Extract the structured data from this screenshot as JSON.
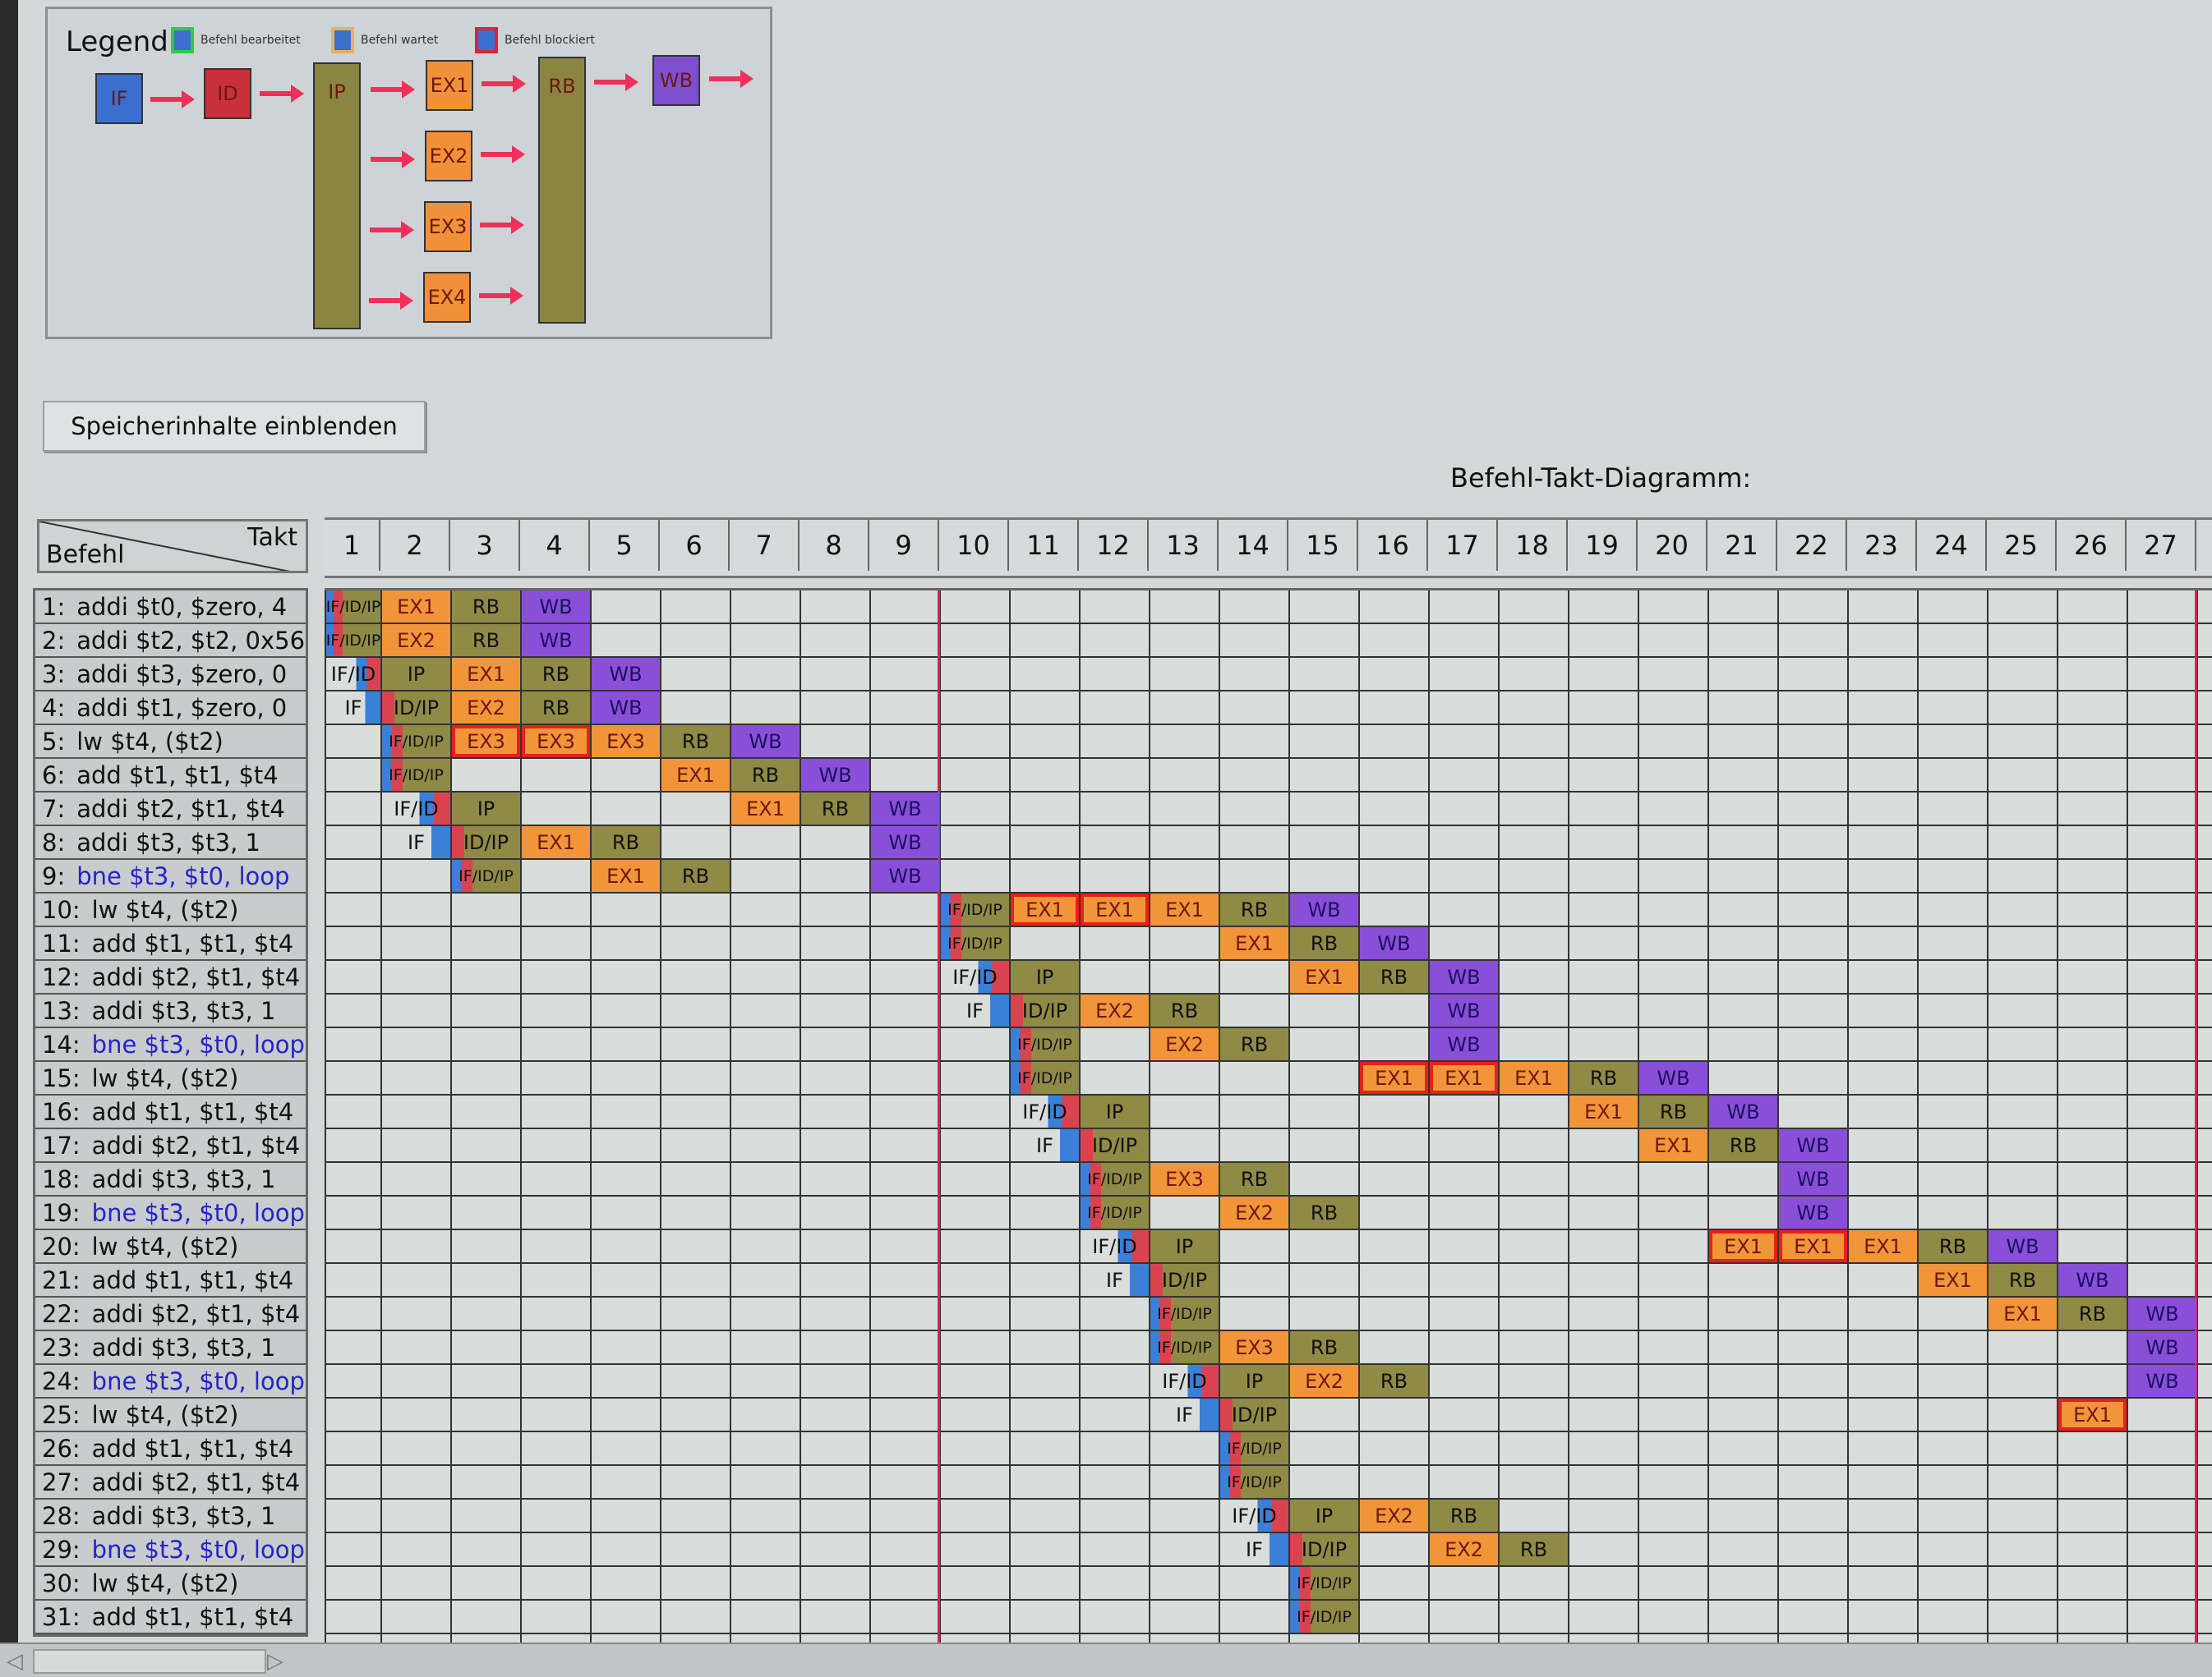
{
  "legend": {
    "title": "Legend",
    "keys": [
      {
        "label": "Befehl bearbeitet",
        "border": "#2ecc40"
      },
      {
        "label": "Befehl wartet",
        "border": "#e8b060"
      },
      {
        "label": "Befehl blockiert",
        "border": "#e0203a"
      }
    ],
    "stages": [
      "IF",
      "ID",
      "IP",
      "EX1",
      "EX2",
      "EX3",
      "EX4",
      "RB",
      "WB"
    ]
  },
  "colors": {
    "IF": "#3a7fd8",
    "ID": "#d9434f",
    "IP": "#8f8a45",
    "EX": "#f2953a",
    "RB": "#8f8a45",
    "WB": "#8a4fd8",
    "blocked": "#e8201a",
    "arrow": "#f0305a",
    "branch_text": "#2323cc"
  },
  "button": {
    "label": "Speicherinhalte einblenden"
  },
  "diagram": {
    "title": "Befehl-Takt-Diagramm:",
    "header_takt": "Takt",
    "header_befehl": "Befehl",
    "takte": [
      "1",
      "2",
      "3",
      "4",
      "5",
      "6",
      "7",
      "8",
      "9",
      "10",
      "11",
      "12",
      "13",
      "14",
      "15",
      "16",
      "17",
      "18",
      "19",
      "20",
      "21",
      "22",
      "23",
      "24",
      "25",
      "26",
      "27"
    ],
    "rows": [
      {
        "num": "1:",
        "instr": "addi $t0, $zero, 4",
        "branch": false,
        "cells": [
          [
            "IF/ID/IP",
            1
          ],
          [
            "EX1",
            2
          ],
          [
            "RB",
            3
          ],
          [
            "WB",
            4
          ]
        ]
      },
      {
        "num": "2:",
        "instr": "addi $t2, $t2, 0x56",
        "branch": false,
        "cells": [
          [
            "IF/ID/IP",
            1
          ],
          [
            "EX2",
            2
          ],
          [
            "RB",
            3
          ],
          [
            "WB",
            4
          ]
        ]
      },
      {
        "num": "3:",
        "instr": "addi $t3, $zero, 0",
        "branch": false,
        "cells": [
          [
            "IF/ID",
            1
          ],
          [
            "IP",
            2
          ],
          [
            "EX1",
            3
          ],
          [
            "RB",
            4
          ],
          [
            "WB",
            5
          ]
        ]
      },
      {
        "num": "4:",
        "instr": "addi $t1, $zero, 0",
        "branch": false,
        "cells": [
          [
            "IF",
            1
          ],
          [
            "ID/IP",
            2
          ],
          [
            "EX2",
            3
          ],
          [
            "RB",
            4
          ],
          [
            "WB",
            5
          ]
        ]
      },
      {
        "num": "5:",
        "instr": "lw $t4, ($t2)",
        "branch": false,
        "cells": [
          [
            "IF/ID/IP",
            2
          ],
          [
            "EX3",
            3,
            true
          ],
          [
            "EX3",
            4,
            true
          ],
          [
            "EX3",
            5
          ],
          [
            "RB",
            6
          ],
          [
            "WB",
            7
          ]
        ]
      },
      {
        "num": "6:",
        "instr": "add $t1, $t1, $t4",
        "branch": false,
        "cells": [
          [
            "IF/ID/IP",
            2
          ],
          [
            "EX1",
            6
          ],
          [
            "RB",
            7
          ],
          [
            "WB",
            8
          ]
        ]
      },
      {
        "num": "7:",
        "instr": "addi $t2, $t1, $t4",
        "branch": false,
        "cells": [
          [
            "IF/ID",
            2
          ],
          [
            "IP",
            3
          ],
          [
            "EX1",
            7
          ],
          [
            "RB",
            8
          ],
          [
            "WB",
            9
          ]
        ]
      },
      {
        "num": "8:",
        "instr": "addi $t3, $t3, 1",
        "branch": false,
        "cells": [
          [
            "IF",
            2
          ],
          [
            "ID/IP",
            3
          ],
          [
            "EX1",
            4
          ],
          [
            "RB",
            5
          ],
          [
            "WB",
            9
          ]
        ]
      },
      {
        "num": "9:",
        "instr": "bne $t3, $t0, loop",
        "branch": true,
        "cells": [
          [
            "IF/ID/IP",
            3
          ],
          [
            "EX1",
            5
          ],
          [
            "RB",
            6
          ],
          [
            "WB",
            9
          ]
        ]
      },
      {
        "num": "10:",
        "instr": "lw $t4, ($t2)",
        "branch": false,
        "cells": [
          [
            "IF/ID/IP",
            10
          ],
          [
            "EX1",
            11,
            true
          ],
          [
            "EX1",
            12,
            true
          ],
          [
            "EX1",
            13
          ],
          [
            "RB",
            14
          ],
          [
            "WB",
            15
          ]
        ]
      },
      {
        "num": "11:",
        "instr": "add $t1, $t1, $t4",
        "branch": false,
        "cells": [
          [
            "IF/ID/IP",
            10
          ],
          [
            "EX1",
            14
          ],
          [
            "RB",
            15
          ],
          [
            "WB",
            16
          ]
        ]
      },
      {
        "num": "12:",
        "instr": "addi $t2, $t1, $t4",
        "branch": false,
        "cells": [
          [
            "IF/ID",
            10
          ],
          [
            "IP",
            11
          ],
          [
            "EX1",
            15
          ],
          [
            "RB",
            16
          ],
          [
            "WB",
            17
          ]
        ]
      },
      {
        "num": "13:",
        "instr": "addi $t3, $t3, 1",
        "branch": false,
        "cells": [
          [
            "IF",
            10
          ],
          [
            "ID/IP",
            11
          ],
          [
            "EX2",
            12
          ],
          [
            "RB",
            13
          ],
          [
            "WB",
            17
          ]
        ]
      },
      {
        "num": "14:",
        "instr": "bne $t3, $t0, loop",
        "branch": true,
        "cells": [
          [
            "IF/ID/IP",
            11
          ],
          [
            "EX2",
            13
          ],
          [
            "RB",
            14
          ],
          [
            "WB",
            17
          ]
        ]
      },
      {
        "num": "15:",
        "instr": "lw $t4, ($t2)",
        "branch": false,
        "cells": [
          [
            "IF/ID/IP",
            11
          ],
          [
            "EX1",
            16,
            true
          ],
          [
            "EX1",
            17,
            true
          ],
          [
            "EX1",
            18
          ],
          [
            "RB",
            19
          ],
          [
            "WB",
            20
          ]
        ]
      },
      {
        "num": "16:",
        "instr": "add $t1, $t1, $t4",
        "branch": false,
        "cells": [
          [
            "IF/ID",
            11
          ],
          [
            "IP",
            12
          ],
          [
            "EX1",
            19
          ],
          [
            "RB",
            20
          ],
          [
            "WB",
            21
          ]
        ]
      },
      {
        "num": "17:",
        "instr": "addi $t2, $t1, $t4",
        "branch": false,
        "cells": [
          [
            "IF",
            11
          ],
          [
            "ID/IP",
            12
          ],
          [
            "EX1",
            20
          ],
          [
            "RB",
            21
          ],
          [
            "WB",
            22
          ]
        ]
      },
      {
        "num": "18:",
        "instr": "addi $t3, $t3, 1",
        "branch": false,
        "cells": [
          [
            "IF/ID/IP",
            12
          ],
          [
            "EX3",
            13
          ],
          [
            "RB",
            14
          ],
          [
            "WB",
            22
          ]
        ]
      },
      {
        "num": "19:",
        "instr": "bne $t3, $t0, loop",
        "branch": true,
        "cells": [
          [
            "IF/ID/IP",
            12
          ],
          [
            "EX2",
            14
          ],
          [
            "RB",
            15
          ],
          [
            "WB",
            22
          ]
        ]
      },
      {
        "num": "20:",
        "instr": "lw $t4, ($t2)",
        "branch": false,
        "cells": [
          [
            "IF/ID",
            12
          ],
          [
            "IP",
            13
          ],
          [
            "EX1",
            21,
            true
          ],
          [
            "EX1",
            22,
            true
          ],
          [
            "EX1",
            23
          ],
          [
            "RB",
            24
          ],
          [
            "WB",
            25
          ]
        ]
      },
      {
        "num": "21:",
        "instr": "add $t1, $t1, $t4",
        "branch": false,
        "cells": [
          [
            "IF",
            12
          ],
          [
            "ID/IP",
            13
          ],
          [
            "EX1",
            24
          ],
          [
            "RB",
            25
          ],
          [
            "WB",
            26
          ]
        ]
      },
      {
        "num": "22:",
        "instr": "addi $t2, $t1, $t4",
        "branch": false,
        "cells": [
          [
            "IF/ID/IP",
            13
          ],
          [
            "EX1",
            25
          ],
          [
            "RB",
            26
          ],
          [
            "WB",
            27
          ]
        ]
      },
      {
        "num": "23:",
        "instr": "addi $t3, $t3, 1",
        "branch": false,
        "cells": [
          [
            "IF/ID/IP",
            13
          ],
          [
            "EX3",
            14
          ],
          [
            "RB",
            15
          ],
          [
            "WB",
            27
          ]
        ]
      },
      {
        "num": "24:",
        "instr": "bne $t3, $t0, loop",
        "branch": true,
        "cells": [
          [
            "IF/ID",
            13
          ],
          [
            "IP",
            14
          ],
          [
            "EX2",
            15
          ],
          [
            "RB",
            16
          ],
          [
            "WB",
            27
          ]
        ]
      },
      {
        "num": "25:",
        "instr": "lw $t4, ($t2)",
        "branch": false,
        "cells": [
          [
            "IF",
            13
          ],
          [
            "ID/IP",
            14
          ],
          [
            "EX1",
            26,
            true
          ]
        ]
      },
      {
        "num": "26:",
        "instr": "add $t1, $t1, $t4",
        "branch": false,
        "cells": [
          [
            "IF/ID/IP",
            14
          ]
        ]
      },
      {
        "num": "27:",
        "instr": "addi $t2, $t1, $t4",
        "branch": false,
        "cells": [
          [
            "IF/ID/IP",
            14
          ]
        ]
      },
      {
        "num": "28:",
        "instr": "addi $t3, $t3, 1",
        "branch": false,
        "cells": [
          [
            "IF/ID",
            14
          ],
          [
            "IP",
            15
          ],
          [
            "EX2",
            16
          ],
          [
            "RB",
            17
          ]
        ]
      },
      {
        "num": "29:",
        "instr": "bne $t3, $t0, loop",
        "branch": true,
        "cells": [
          [
            "IF",
            14
          ],
          [
            "ID/IP",
            15
          ],
          [
            "EX2",
            17
          ],
          [
            "RB",
            18
          ]
        ]
      },
      {
        "num": "30:",
        "instr": "lw $t4, ($t2)",
        "branch": false,
        "cells": [
          [
            "IF/ID/IP",
            15
          ]
        ]
      },
      {
        "num": "31:",
        "instr": "add $t1, $t1, $t4",
        "branch": false,
        "cells": [
          [
            "IF/ID/IP",
            15
          ]
        ]
      }
    ]
  }
}
